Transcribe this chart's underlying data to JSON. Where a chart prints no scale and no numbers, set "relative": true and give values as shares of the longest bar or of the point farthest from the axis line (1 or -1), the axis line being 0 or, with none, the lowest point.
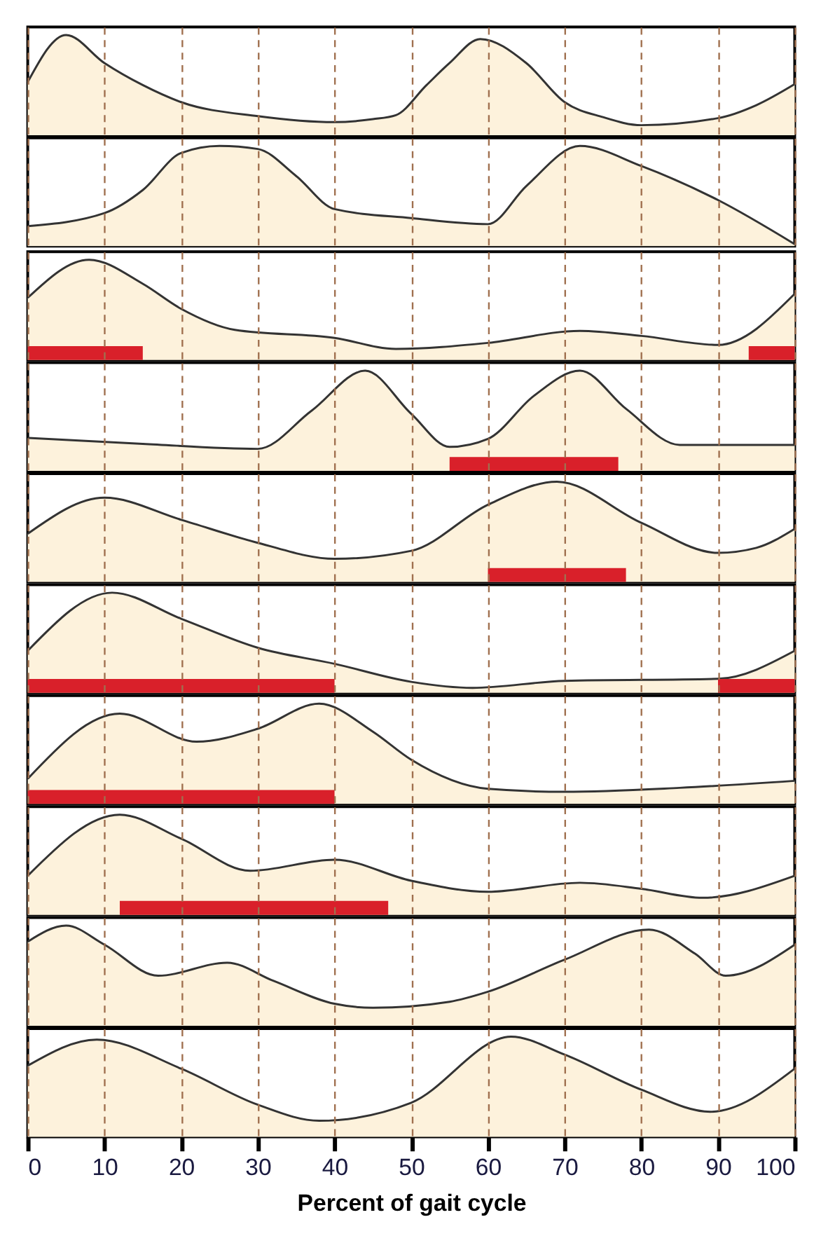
{
  "chart_data": [
    {
      "type": "area",
      "relative": true,
      "color": "#fdf2dc",
      "xlim": [
        0,
        100
      ],
      "xticks": [
        0,
        10,
        20,
        30,
        40,
        50,
        60,
        70,
        80,
        90,
        100
      ],
      "grid": "x",
      "tick_labels": false,
      "x": [
        0,
        5,
        10,
        15,
        20,
        30,
        40,
        45,
        48,
        52,
        55,
        59,
        65,
        70,
        75,
        80,
        90,
        95,
        100
      ],
      "values": [
        0.53,
        1,
        0.72,
        0.5,
        0.33,
        0.19,
        0.13,
        0.16,
        0.2,
        0.5,
        0.72,
        0.96,
        0.72,
        0.33,
        0.18,
        0.1,
        0.17,
        0.3,
        0.51
      ]
    },
    {
      "type": "area",
      "relative": true,
      "color": "#fdf2dc",
      "xlim": [
        0,
        100
      ],
      "xticks": [
        0,
        10,
        20,
        30,
        40,
        50,
        60,
        70,
        80,
        90,
        100
      ],
      "grid": "x",
      "tick_labels": false,
      "x": [
        0,
        10,
        15,
        20,
        25,
        30,
        35,
        40,
        50,
        60,
        65,
        72,
        80,
        90,
        100
      ],
      "values": [
        0.2,
        0.33,
        0.56,
        0.93,
        1,
        0.97,
        0.7,
        0.37,
        0.28,
        0.22,
        0.6,
        1,
        0.8,
        0.46,
        0.02
      ]
    },
    {
      "type": "area",
      "relative": true,
      "color": "#fdf2dc",
      "xlim": [
        0,
        100
      ],
      "xticks": [
        0,
        10,
        20,
        30,
        40,
        50,
        60,
        70,
        80,
        90,
        100
      ],
      "grid": "x",
      "tick_labels": false,
      "x": [
        0,
        8,
        15,
        20,
        27,
        40,
        48,
        60,
        72,
        80,
        90,
        100
      ],
      "values": [
        0.62,
        1,
        0.76,
        0.51,
        0.3,
        0.22,
        0.11,
        0.17,
        0.29,
        0.24,
        0.15,
        0.66
      ],
      "bands": [
        {
          "axis": "x",
          "from": 0,
          "to": 15,
          "color": "#d9202a"
        },
        {
          "axis": "x",
          "from": 94,
          "to": 100,
          "color": "#d9202a"
        }
      ]
    },
    {
      "type": "area",
      "relative": true,
      "color": "#fdf2dc",
      "xlim": [
        0,
        100
      ],
      "xticks": [
        0,
        10,
        20,
        30,
        40,
        50,
        60,
        70,
        80,
        90,
        100
      ],
      "grid": "x",
      "tick_labels": false,
      "x": [
        0,
        15,
        30,
        37,
        44,
        50,
        55,
        60,
        66,
        72,
        78,
        85,
        100
      ],
      "values": [
        0.33,
        0.27,
        0.22,
        0.6,
        1,
        0.57,
        0.24,
        0.32,
        0.75,
        1,
        0.62,
        0.26,
        0.26
      ],
      "bands": [
        {
          "axis": "x",
          "from": 55,
          "to": 77,
          "color": "#d9202a"
        }
      ]
    },
    {
      "type": "area",
      "relative": true,
      "color": "#fdf2dc",
      "xlim": [
        0,
        100
      ],
      "xticks": [
        0,
        10,
        20,
        30,
        40,
        50,
        60,
        70,
        80,
        90,
        100
      ],
      "grid": "x",
      "tick_labels": false,
      "x": [
        0,
        10,
        20,
        30,
        40,
        50,
        60,
        69,
        80,
        90,
        95,
        100
      ],
      "values": [
        0.48,
        0.84,
        0.62,
        0.39,
        0.23,
        0.31,
        0.77,
        1,
        0.59,
        0.29,
        0.34,
        0.53
      ],
      "bands": [
        {
          "axis": "x",
          "from": 60,
          "to": 78,
          "color": "#d9202a"
        }
      ]
    },
    {
      "type": "area",
      "relative": true,
      "color": "#fdf2dc",
      "xlim": [
        0,
        100
      ],
      "xticks": [
        0,
        10,
        20,
        30,
        40,
        50,
        60,
        70,
        80,
        90,
        100
      ],
      "grid": "x",
      "tick_labels": false,
      "x": [
        0,
        11,
        20,
        30,
        40,
        50,
        58,
        70,
        90,
        100
      ],
      "values": [
        0.42,
        1,
        0.74,
        0.45,
        0.29,
        0.11,
        0.05,
        0.12,
        0.14,
        0.42
      ],
      "bands": [
        {
          "axis": "x",
          "from": 0,
          "to": 40,
          "color": "#d9202a"
        },
        {
          "axis": "x",
          "from": 90,
          "to": 100,
          "color": "#d9202a"
        }
      ]
    },
    {
      "type": "area",
      "relative": true,
      "color": "#fdf2dc",
      "xlim": [
        0,
        100
      ],
      "xticks": [
        0,
        10,
        20,
        30,
        40,
        50,
        60,
        70,
        80,
        90,
        100
      ],
      "grid": "x",
      "tick_labels": false,
      "x": [
        0,
        12,
        22,
        30,
        38,
        45,
        50,
        60,
        70,
        85,
        100
      ],
      "values": [
        0.25,
        0.9,
        0.62,
        0.75,
        1,
        0.72,
        0.44,
        0.15,
        0.12,
        0.16,
        0.23
      ],
      "bands": [
        {
          "axis": "x",
          "from": 0,
          "to": 40,
          "color": "#d9202a"
        }
      ]
    },
    {
      "type": "area",
      "relative": true,
      "color": "#fdf2dc",
      "xlim": [
        0,
        100
      ],
      "xticks": [
        0,
        10,
        20,
        30,
        40,
        50,
        60,
        70,
        80,
        90,
        100
      ],
      "grid": "x",
      "tick_labels": false,
      "x": [
        0,
        12,
        20,
        29,
        40,
        50,
        60,
        72,
        80,
        88,
        100
      ],
      "values": [
        0.39,
        1,
        0.76,
        0.44,
        0.55,
        0.34,
        0.23,
        0.32,
        0.26,
        0.17,
        0.39
      ],
      "bands": [
        {
          "axis": "x",
          "from": 12,
          "to": 47,
          "color": "#d9202a"
        }
      ]
    },
    {
      "type": "area",
      "relative": true,
      "color": "#fdf2dc",
      "xlim": [
        0,
        100
      ],
      "xticks": [
        0,
        10,
        20,
        30,
        40,
        50,
        60,
        70,
        80,
        90,
        100
      ],
      "grid": "x",
      "tick_labels": false,
      "x": [
        0,
        5,
        10,
        17,
        26,
        32,
        40,
        45,
        55,
        60,
        70,
        81,
        87,
        91,
        100
      ],
      "values": [
        0.84,
        1,
        0.81,
        0.5,
        0.63,
        0.45,
        0.22,
        0.18,
        0.24,
        0.34,
        0.66,
        0.96,
        0.72,
        0.5,
        0.81
      ]
    },
    {
      "type": "area",
      "relative": true,
      "color": "#fdf2dc",
      "xlim": [
        0,
        100
      ],
      "xticks": [
        0,
        10,
        20,
        30,
        40,
        50,
        60,
        70,
        80,
        90,
        100
      ],
      "grid": "x",
      "tick_labels": "x",
      "xlabel": "Percent of gait cycle",
      "x": [
        0,
        9,
        20,
        30,
        38,
        50,
        63,
        70,
        80,
        89,
        100
      ],
      "values": [
        0.71,
        0.97,
        0.68,
        0.32,
        0.16,
        0.34,
        1,
        0.82,
        0.47,
        0.25,
        0.68
      ]
    }
  ]
}
